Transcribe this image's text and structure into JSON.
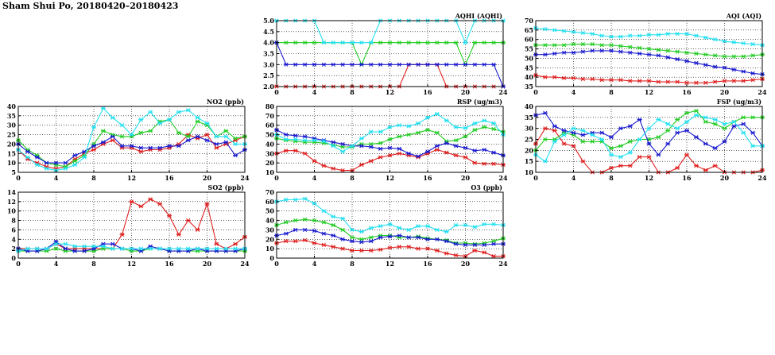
{
  "page": {
    "title": "Sham Shui Po, 20180420–20180423"
  },
  "colors": {
    "red": "#e02020",
    "green": "#22cc22",
    "blue": "#1a1ad0",
    "cyan": "#22e0f0"
  },
  "chart_data": [
    {
      "id": "aqhi",
      "type": "line",
      "title": "AQHI (AQHI)",
      "xlim": [
        0,
        24
      ],
      "xticks": [
        0,
        4,
        8,
        12,
        16,
        20,
        24
      ],
      "ylim": [
        2,
        5
      ],
      "yticks": [
        "2.0",
        "2.5",
        "3.0",
        "3.5",
        "4.0",
        "4.5",
        "5.0"
      ],
      "grid": true,
      "x": [
        0,
        1,
        2,
        3,
        4,
        5,
        6,
        7,
        8,
        9,
        10,
        11,
        12,
        13,
        14,
        15,
        16,
        17,
        18,
        19,
        20,
        21,
        22,
        23,
        24
      ],
      "series": [
        {
          "color": "red",
          "values": [
            2,
            2,
            2,
            2,
            2,
            2,
            2,
            2,
            2,
            2,
            2,
            2,
            2,
            2,
            3,
            3,
            3,
            3,
            2,
            2,
            2,
            2,
            2,
            2,
            2
          ]
        },
        {
          "color": "green",
          "values": [
            4,
            4,
            4,
            4,
            4,
            4,
            4,
            4,
            4,
            3,
            4,
            4,
            4,
            4,
            4,
            4,
            4,
            4,
            4,
            4,
            3,
            4,
            4,
            4,
            4
          ]
        },
        {
          "color": "blue",
          "values": [
            4,
            3,
            3,
            3,
            3,
            3,
            3,
            3,
            3,
            3,
            3,
            3,
            3,
            3,
            3,
            3,
            3,
            3,
            3,
            3,
            3,
            3,
            3,
            3,
            2
          ]
        },
        {
          "color": "cyan",
          "values": [
            5,
            5,
            5,
            5,
            5,
            4,
            4,
            4,
            4,
            4,
            4,
            5,
            5,
            5,
            5,
            5,
            5,
            5,
            5,
            5,
            4,
            5,
            5,
            5,
            5
          ]
        }
      ]
    },
    {
      "id": "aqi",
      "type": "line",
      "title": "AQI (AQI)",
      "xlim": [
        0,
        24
      ],
      "xticks": [
        0,
        4,
        8,
        12,
        16,
        20,
        24
      ],
      "ylim": [
        35,
        70
      ],
      "yticks": [
        "35",
        "40",
        "45",
        "50",
        "55",
        "60",
        "65",
        "70"
      ],
      "grid": true,
      "x": [
        0,
        1,
        2,
        3,
        4,
        5,
        6,
        7,
        8,
        9,
        10,
        11,
        12,
        13,
        14,
        15,
        16,
        17,
        18,
        19,
        20,
        21,
        22,
        23,
        24
      ],
      "series": [
        {
          "color": "red",
          "values": [
            41,
            40,
            40,
            39.5,
            39.5,
            39,
            39,
            38.5,
            38.5,
            38.5,
            38,
            38,
            38,
            37.5,
            37.5,
            37.5,
            37,
            37,
            37,
            37.5,
            38,
            38,
            38,
            38.5,
            39
          ]
        },
        {
          "color": "green",
          "values": [
            57,
            57,
            57,
            57,
            57.5,
            57.5,
            57.5,
            57,
            57,
            56.5,
            56,
            55.5,
            55,
            54.5,
            54,
            53.5,
            53,
            52.5,
            52,
            51.5,
            51,
            51,
            51,
            51.5,
            52
          ]
        },
        {
          "color": "blue",
          "values": [
            52,
            52,
            52.5,
            53,
            53,
            53.5,
            54,
            54,
            54,
            53.5,
            53,
            52.5,
            52,
            51.5,
            50.5,
            49.5,
            48.5,
            47.5,
            46.5,
            45.5,
            45,
            44,
            43,
            42,
            41.5
          ]
        },
        {
          "color": "cyan",
          "values": [
            66,
            65.5,
            65,
            64.5,
            64,
            63.5,
            63,
            62,
            61.5,
            61.5,
            62,
            62,
            62.5,
            62.5,
            63,
            63,
            63,
            62,
            61,
            60,
            59,
            58.5,
            58,
            57.5,
            57
          ]
        }
      ]
    },
    {
      "id": "no2",
      "type": "line",
      "title": "NO2 (ppb)",
      "xlim": [
        0,
        24
      ],
      "xticks": [
        0,
        4,
        8,
        12,
        16,
        20,
        24
      ],
      "ylim": [
        5,
        40
      ],
      "yticks": [
        "5",
        "10",
        "15",
        "20",
        "25",
        "30",
        "35",
        "40"
      ],
      "grid": true,
      "x": [
        0,
        1,
        2,
        3,
        4,
        5,
        6,
        7,
        8,
        9,
        10,
        11,
        12,
        13,
        14,
        15,
        16,
        17,
        18,
        19,
        20,
        21,
        22,
        23,
        24
      ],
      "series": [
        {
          "color": "red",
          "values": [
            17,
            12,
            10,
            8,
            7,
            8,
            12,
            15,
            17,
            20,
            22,
            18,
            18,
            16,
            17,
            17,
            18,
            20,
            25,
            23,
            25,
            18,
            20,
            22,
            24
          ]
        },
        {
          "color": "green",
          "values": [
            22,
            17,
            14,
            10,
            9,
            8,
            11,
            14,
            20,
            27,
            25,
            24,
            24,
            26,
            27,
            32,
            33,
            26,
            24,
            32,
            30,
            24,
            27,
            23,
            24
          ]
        },
        {
          "color": "blue",
          "values": [
            20,
            16,
            13,
            10,
            10,
            10,
            14,
            16,
            19,
            21,
            24,
            19,
            19,
            18,
            18,
            18,
            19,
            19,
            22,
            24,
            22,
            20,
            21,
            14,
            17
          ]
        },
        {
          "color": "cyan",
          "values": [
            17,
            13,
            9,
            7,
            6,
            7,
            9,
            13,
            29,
            39,
            34,
            30,
            25,
            33,
            37,
            31,
            33,
            37,
            38,
            34,
            31,
            24,
            24,
            20,
            20
          ]
        }
      ]
    },
    {
      "id": "rsp",
      "type": "line",
      "title": "RSP (ug/m3)",
      "xlim": [
        0,
        24
      ],
      "xticks": [
        0,
        4,
        8,
        12,
        16,
        20,
        24
      ],
      "ylim": [
        10,
        80
      ],
      "yticks": [
        "10",
        "20",
        "30",
        "40",
        "50",
        "60",
        "70",
        "80"
      ],
      "grid": true,
      "x": [
        0,
        1,
        2,
        3,
        4,
        5,
        6,
        7,
        8,
        9,
        10,
        11,
        12,
        13,
        14,
        15,
        16,
        17,
        18,
        19,
        20,
        21,
        22,
        23,
        24
      ],
      "series": [
        {
          "color": "red",
          "values": [
            30,
            33,
            33,
            30,
            22,
            17,
            14,
            12,
            12,
            18,
            22,
            26,
            28,
            30,
            28,
            26,
            30,
            34,
            31,
            28,
            26,
            20,
            19,
            19,
            18
          ]
        },
        {
          "color": "green",
          "values": [
            46,
            44,
            43,
            42,
            42,
            41,
            39,
            37,
            37,
            40,
            40,
            41,
            45,
            48,
            50,
            52,
            55,
            52,
            43,
            44,
            48,
            55,
            58,
            56,
            53
          ]
        },
        {
          "color": "blue",
          "values": [
            55,
            50,
            49,
            48,
            46,
            44,
            42,
            40,
            38,
            38,
            37,
            35,
            36,
            35,
            30,
            27,
            32,
            38,
            41,
            38,
            36,
            33,
            34,
            31,
            28
          ]
        },
        {
          "color": "cyan",
          "values": [
            50,
            45,
            45,
            44,
            44,
            43,
            38,
            32,
            38,
            46,
            53,
            53,
            58,
            60,
            59,
            62,
            68,
            72,
            65,
            58,
            57,
            62,
            65,
            62,
            50
          ]
        }
      ]
    },
    {
      "id": "fsp",
      "type": "line",
      "title": "FSP (ug/m3)",
      "xlim": [
        0,
        24
      ],
      "xticks": [
        0,
        4,
        8,
        12,
        16,
        20,
        24
      ],
      "ylim": [
        10,
        40
      ],
      "yticks": [
        "10",
        "15",
        "20",
        "25",
        "30",
        "35",
        "40"
      ],
      "grid": true,
      "x": [
        0,
        1,
        2,
        3,
        4,
        5,
        6,
        7,
        8,
        9,
        10,
        11,
        12,
        13,
        14,
        15,
        16,
        17,
        18,
        19,
        20,
        21,
        22,
        23,
        24
      ],
      "series": [
        {
          "color": "red",
          "values": [
            23,
            30,
            29,
            23,
            22,
            15,
            10,
            10,
            12,
            13,
            13,
            17,
            17,
            10,
            10,
            12,
            18,
            13,
            11,
            13,
            10,
            10,
            10,
            10,
            11
          ]
        },
        {
          "color": "green",
          "values": [
            20,
            25,
            25,
            28,
            27,
            24,
            24,
            24,
            21,
            22,
            24,
            25,
            25,
            26,
            29,
            34,
            37,
            38,
            33,
            32,
            30,
            33,
            35,
            35,
            35
          ]
        },
        {
          "color": "blue",
          "values": [
            36,
            37,
            31,
            29,
            28,
            27,
            28,
            28,
            26,
            30,
            31,
            34,
            23,
            18,
            23,
            28,
            29,
            26,
            23,
            21,
            24,
            31,
            32,
            28,
            22
          ]
        },
        {
          "color": "cyan",
          "values": [
            18,
            15,
            24,
            27,
            30,
            29,
            27,
            25,
            18,
            17,
            19,
            25,
            30,
            34,
            32,
            30,
            33,
            36,
            35,
            34,
            32,
            33,
            28,
            22,
            22
          ]
        }
      ]
    },
    {
      "id": "so2",
      "type": "line",
      "title": "SO2 (ppb)",
      "xlim": [
        0,
        24
      ],
      "xticks": [
        0,
        4,
        8,
        12,
        16,
        20,
        24
      ],
      "ylim": [
        0,
        14
      ],
      "yticks": [
        "0",
        "2",
        "4",
        "6",
        "8",
        "10",
        "12",
        "14"
      ],
      "grid": true,
      "x": [
        0,
        1,
        2,
        3,
        4,
        5,
        6,
        7,
        8,
        9,
        10,
        11,
        12,
        13,
        14,
        15,
        16,
        17,
        18,
        19,
        20,
        21,
        22,
        23,
        24
      ],
      "series": [
        {
          "color": "red",
          "values": [
            2,
            2,
            2,
            2,
            3,
            2,
            2,
            2,
            2,
            2,
            2,
            5,
            12,
            11,
            12.5,
            11.5,
            9,
            5,
            8,
            6,
            11.5,
            3,
            2,
            3,
            4.5
          ]
        },
        {
          "color": "green",
          "values": [
            1.5,
            1.5,
            1.5,
            1.5,
            2,
            1.5,
            1.5,
            1.5,
            1.5,
            2,
            2,
            2,
            1.5,
            1.5,
            2,
            2,
            1.5,
            1.5,
            1.5,
            1.5,
            1.5,
            1.5,
            1.5,
            1.5,
            1.5
          ]
        },
        {
          "color": "blue",
          "values": [
            2,
            1.5,
            1.5,
            2,
            3.5,
            2,
            1.5,
            1.5,
            2,
            3,
            3,
            2,
            2,
            1.5,
            2.5,
            2,
            1.5,
            1.5,
            1.5,
            2,
            1.5,
            1.5,
            1.5,
            1.5,
            2
          ]
        },
        {
          "color": "cyan",
          "values": [
            1.5,
            2,
            2,
            2,
            3,
            3,
            2.5,
            2.5,
            2.5,
            2.5,
            2,
            2,
            2,
            2,
            2,
            2,
            2,
            2,
            2,
            2,
            2,
            2,
            2,
            2,
            2
          ]
        }
      ]
    },
    {
      "id": "o3",
      "type": "line",
      "title": "O3 (ppb)",
      "xlim": [
        0,
        24
      ],
      "xticks": [
        0,
        4,
        8,
        12,
        16,
        20,
        24
      ],
      "ylim": [
        0,
        70
      ],
      "yticks": [
        "0",
        "10",
        "20",
        "30",
        "40",
        "50",
        "60",
        "70"
      ],
      "grid": true,
      "x": [
        0,
        1,
        2,
        3,
        4,
        5,
        6,
        7,
        8,
        9,
        10,
        11,
        12,
        13,
        14,
        15,
        16,
        17,
        18,
        19,
        20,
        21,
        22,
        23,
        24
      ],
      "series": [
        {
          "color": "red",
          "values": [
            16,
            18,
            18,
            19,
            16,
            14,
            12,
            10,
            8,
            8,
            8,
            9,
            11,
            12,
            12,
            10,
            10,
            8,
            5,
            3,
            2,
            8,
            6,
            2,
            2
          ]
        },
        {
          "color": "green",
          "values": [
            35,
            38,
            40,
            41,
            40,
            38,
            35,
            30,
            22,
            20,
            22,
            24,
            24,
            22,
            22,
            23,
            21,
            20,
            19,
            16,
            16,
            15,
            16,
            18,
            21
          ]
        },
        {
          "color": "blue",
          "values": [
            24,
            26,
            30,
            30,
            29,
            26,
            24,
            20,
            18,
            17,
            18,
            22,
            23,
            24,
            22,
            22,
            20,
            20,
            18,
            15,
            14,
            14,
            14,
            15,
            15
          ]
        },
        {
          "color": "cyan",
          "values": [
            60,
            62,
            62,
            63,
            58,
            50,
            44,
            42,
            30,
            28,
            32,
            34,
            36,
            32,
            30,
            34,
            34,
            30,
            28,
            35,
            35,
            33,
            36,
            36,
            35
          ]
        }
      ]
    }
  ]
}
